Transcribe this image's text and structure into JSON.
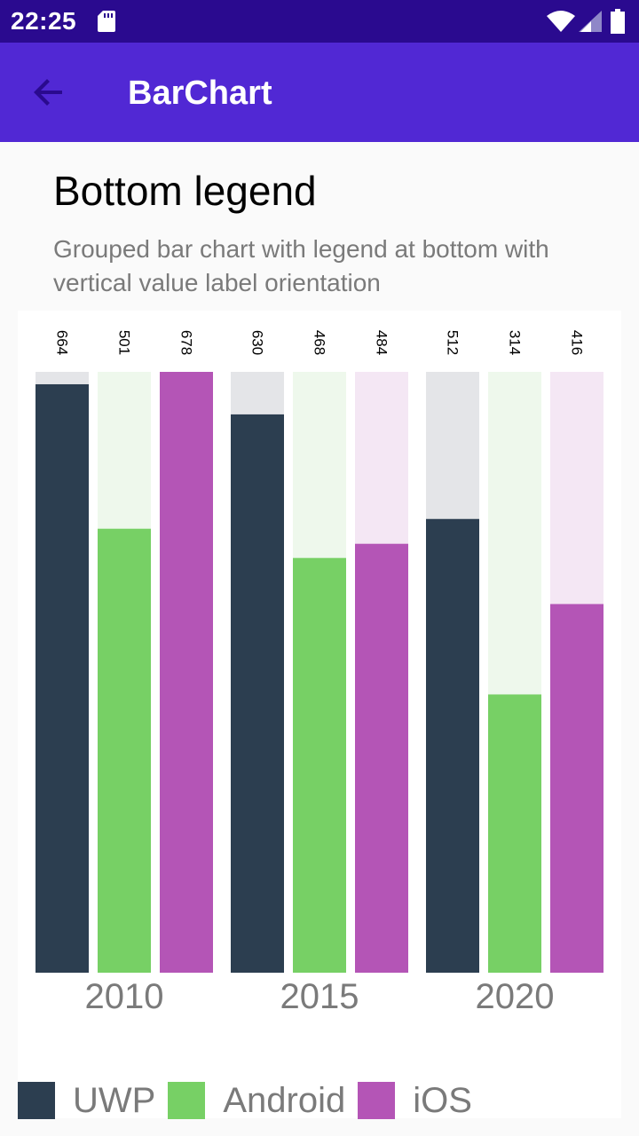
{
  "status_bar": {
    "time": "22:25"
  },
  "app_bar": {
    "title": "BarChart"
  },
  "page": {
    "title": "Bottom legend",
    "description": "Grouped bar chart with legend at bottom with vertical value label orientation"
  },
  "colors": {
    "status_bar": "#2a0a8f",
    "app_bar": "#5128d4",
    "UWP": "#2c3e50",
    "Android": "#77d065",
    "iOS": "#b455b6",
    "UWP_track": "#e4e5e8",
    "Android_track": "#eef8ec",
    "iOS_track": "#f4e7f4"
  },
  "chart_data": {
    "type": "bar",
    "categories": [
      "2010",
      "2015",
      "2020"
    ],
    "series": [
      {
        "name": "UWP",
        "values": [
          664,
          630,
          512
        ]
      },
      {
        "name": "Android",
        "values": [
          501,
          468,
          314
        ]
      },
      {
        "name": "iOS",
        "values": [
          678,
          484,
          416
        ]
      }
    ],
    "ylim": [
      0,
      678
    ],
    "value_label_orientation": "vertical",
    "legend_position": "bottom",
    "grid": false
  }
}
